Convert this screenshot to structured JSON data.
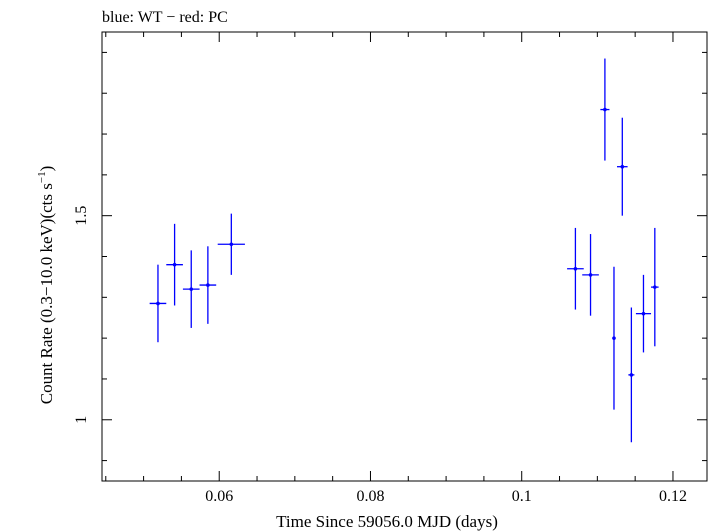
{
  "chart_data": {
    "type": "scatter",
    "title": "blue: WT − red: PC",
    "xlabel": "Time Since 59056.0 MJD (days)",
    "ylabel_main": "Count Rate (0.3−10.0 keV)(cts s",
    "ylabel_sup": "−1",
    "ylabel_close": ")",
    "xlim": [
      0.0445,
      0.1245
    ],
    "ylim": [
      0.85,
      1.95
    ],
    "x_ticks": [
      0.06,
      0.08,
      0.1,
      0.12
    ],
    "x_tick_labels": [
      "0.06",
      "0.08",
      "0.1",
      "0.12"
    ],
    "y_ticks": [
      1.0,
      1.5
    ],
    "y_tick_labels": [
      "1",
      "1.5"
    ],
    "grid": false,
    "series": [
      {
        "color": "#0000ff",
        "points": [
          {
            "x": 0.0519,
            "xerr": 0.0011,
            "y": 1.285,
            "yerr": 0.095
          },
          {
            "x": 0.0541,
            "xerr": 0.0011,
            "y": 1.38,
            "yerr": 0.1
          },
          {
            "x": 0.0563,
            "xerr": 0.0011,
            "y": 1.32,
            "yerr": 0.095
          },
          {
            "x": 0.0585,
            "xerr": 0.0011,
            "y": 1.33,
            "yerr": 0.095
          },
          {
            "x": 0.0616,
            "xerr": 0.0018,
            "y": 1.43,
            "yerr": 0.075
          },
          {
            "x": 0.1071,
            "xerr": 0.0011,
            "y": 1.37,
            "yerr": 0.1
          },
          {
            "x": 0.1091,
            "xerr": 0.0011,
            "y": 1.355,
            "yerr": 0.1
          },
          {
            "x": 0.111,
            "xerr": 0.0006,
            "y": 1.76,
            "yerr": 0.125
          },
          {
            "x": 0.1122,
            "xerr": 0.0001,
            "y": 1.2,
            "yerr": 0.175
          },
          {
            "x": 0.1133,
            "xerr": 0.0007,
            "y": 1.62,
            "yerr": 0.12
          },
          {
            "x": 0.1145,
            "xerr": 0.0004,
            "y": 1.11,
            "yerr": 0.165
          },
          {
            "x": 0.1161,
            "xerr": 0.001,
            "y": 1.26,
            "yerr": 0.095
          },
          {
            "x": 0.1176,
            "xerr": 0.0005,
            "y": 1.325,
            "yerr": 0.145
          }
        ]
      }
    ]
  }
}
